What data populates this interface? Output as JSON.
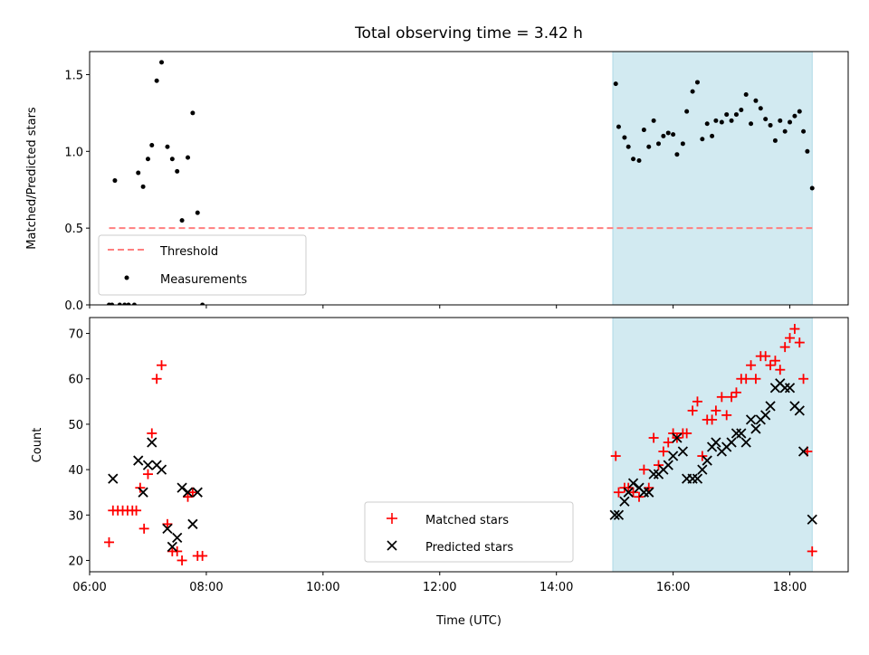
{
  "chart_data": [
    {
      "type": "scatter",
      "title": "Total observing time = 3.42 h",
      "xlabel": "",
      "ylabel": "Matched/Predicted stars",
      "xlim": [
        "06:00",
        "19:00"
      ],
      "ylim": [
        0,
        1.65
      ],
      "yticks": [
        0.0,
        0.5,
        1.0,
        1.5
      ],
      "ytick_labels": [
        "0.0",
        "0.5",
        "1.0",
        "1.5"
      ],
      "shaded_region": {
        "x_start": "14:58",
        "x_end": "18:23",
        "color": "#add8e6"
      },
      "threshold": {
        "name": "Threshold",
        "value": 0.5,
        "x_start": "06:20",
        "x_end": "18:23",
        "color": "#ff7f7f"
      },
      "legend": {
        "placement": "lower-left",
        "entries": [
          "Threshold",
          "Measurements"
        ]
      },
      "series": [
        {
          "name": "Measurements",
          "color": "#000000",
          "points": [
            [
              "06:20",
              0.0
            ],
            [
              "06:23",
              0.0
            ],
            [
              "06:26",
              0.81
            ],
            [
              "06:31",
              0.0
            ],
            [
              "06:36",
              0.0
            ],
            [
              "06:40",
              0.0
            ],
            [
              "06:46",
              0.0
            ],
            [
              "06:50",
              0.86
            ],
            [
              "06:55",
              0.77
            ],
            [
              "07:00",
              0.95
            ],
            [
              "07:04",
              1.04
            ],
            [
              "07:09",
              1.46
            ],
            [
              "07:14",
              1.58
            ],
            [
              "07:20",
              1.03
            ],
            [
              "07:25",
              0.95
            ],
            [
              "07:30",
              0.87
            ],
            [
              "07:35",
              0.55
            ],
            [
              "07:41",
              0.96
            ],
            [
              "07:46",
              1.25
            ],
            [
              "07:51",
              0.6
            ],
            [
              "07:56",
              0.0
            ],
            [
              "15:01",
              1.44
            ],
            [
              "15:04",
              1.16
            ],
            [
              "15:10",
              1.09
            ],
            [
              "15:14",
              1.03
            ],
            [
              "15:19",
              0.95
            ],
            [
              "15:25",
              0.94
            ],
            [
              "15:30",
              1.14
            ],
            [
              "15:35",
              1.03
            ],
            [
              "15:40",
              1.2
            ],
            [
              "15:45",
              1.05
            ],
            [
              "15:50",
              1.1
            ],
            [
              "15:55",
              1.12
            ],
            [
              "16:00",
              1.11
            ],
            [
              "16:04",
              0.98
            ],
            [
              "16:10",
              1.05
            ],
            [
              "16:14",
              1.26
            ],
            [
              "16:20",
              1.39
            ],
            [
              "16:25",
              1.45
            ],
            [
              "16:30",
              1.08
            ],
            [
              "16:35",
              1.18
            ],
            [
              "16:40",
              1.1
            ],
            [
              "16:44",
              1.2
            ],
            [
              "16:50",
              1.19
            ],
            [
              "16:55",
              1.24
            ],
            [
              "17:00",
              1.2
            ],
            [
              "17:05",
              1.24
            ],
            [
              "17:10",
              1.27
            ],
            [
              "17:15",
              1.37
            ],
            [
              "17:20",
              1.18
            ],
            [
              "17:25",
              1.33
            ],
            [
              "17:30",
              1.28
            ],
            [
              "17:35",
              1.21
            ],
            [
              "17:40",
              1.17
            ],
            [
              "17:45",
              1.07
            ],
            [
              "17:50",
              1.2
            ],
            [
              "17:55",
              1.13
            ],
            [
              "18:00",
              1.19
            ],
            [
              "18:05",
              1.23
            ],
            [
              "18:10",
              1.26
            ],
            [
              "18:14",
              1.13
            ],
            [
              "18:18",
              1.0
            ],
            [
              "18:23",
              0.76
            ]
          ]
        }
      ]
    },
    {
      "type": "scatter",
      "xlabel": "Time (UTC)",
      "ylabel": "Count",
      "xlim": [
        "06:00",
        "19:00"
      ],
      "ylim": [
        17.5,
        73.5
      ],
      "xticks": [
        "06:00",
        "08:00",
        "10:00",
        "12:00",
        "14:00",
        "16:00",
        "18:00"
      ],
      "yticks": [
        20,
        30,
        40,
        50,
        60,
        70
      ],
      "shaded_region": {
        "x_start": "14:58",
        "x_end": "18:23",
        "color": "#add8e6"
      },
      "legend": {
        "placement": "lower-center",
        "entries": [
          "Matched stars",
          "Predicted stars"
        ]
      },
      "series": [
        {
          "name": "Matched stars",
          "marker": "plus",
          "color": "#ff0000",
          "points": [
            [
              "06:20",
              24
            ],
            [
              "06:24",
              31
            ],
            [
              "06:29",
              31
            ],
            [
              "06:34",
              31
            ],
            [
              "06:39",
              31
            ],
            [
              "06:44",
              31
            ],
            [
              "06:48",
              31
            ],
            [
              "06:52",
              36
            ],
            [
              "06:56",
              27
            ],
            [
              "07:00",
              39
            ],
            [
              "07:04",
              48
            ],
            [
              "07:09",
              60
            ],
            [
              "07:14",
              63
            ],
            [
              "07:20",
              28
            ],
            [
              "07:25",
              22
            ],
            [
              "07:30",
              22
            ],
            [
              "07:35",
              20
            ],
            [
              "07:41",
              34
            ],
            [
              "07:46",
              35
            ],
            [
              "07:51",
              21
            ],
            [
              "07:56",
              21
            ],
            [
              "15:01",
              43
            ],
            [
              "15:04",
              35
            ],
            [
              "15:10",
              36
            ],
            [
              "15:14",
              36
            ],
            [
              "15:19",
              35
            ],
            [
              "15:25",
              34
            ],
            [
              "15:30",
              40
            ],
            [
              "15:35",
              36
            ],
            [
              "15:40",
              47
            ],
            [
              "15:45",
              41
            ],
            [
              "15:50",
              44
            ],
            [
              "15:55",
              46
            ],
            [
              "16:00",
              48
            ],
            [
              "16:04",
              47
            ],
            [
              "16:10",
              48
            ],
            [
              "16:14",
              48
            ],
            [
              "16:20",
              53
            ],
            [
              "16:25",
              55
            ],
            [
              "16:30",
              43
            ],
            [
              "16:35",
              51
            ],
            [
              "16:40",
              51
            ],
            [
              "16:44",
              53
            ],
            [
              "16:50",
              56
            ],
            [
              "16:55",
              52
            ],
            [
              "17:00",
              56
            ],
            [
              "17:05",
              57
            ],
            [
              "17:10",
              60
            ],
            [
              "17:15",
              60
            ],
            [
              "17:20",
              63
            ],
            [
              "17:25",
              60
            ],
            [
              "17:30",
              65
            ],
            [
              "17:35",
              65
            ],
            [
              "17:40",
              63
            ],
            [
              "17:45",
              64
            ],
            [
              "17:50",
              62
            ],
            [
              "17:55",
              67
            ],
            [
              "18:00",
              69
            ],
            [
              "18:05",
              71
            ],
            [
              "18:10",
              68
            ],
            [
              "18:14",
              60
            ],
            [
              "18:18",
              44
            ],
            [
              "18:23",
              22
            ]
          ]
        },
        {
          "name": "Predicted stars",
          "marker": "x",
          "color": "#000000",
          "points": [
            [
              "06:24",
              38
            ],
            [
              "06:50",
              42
            ],
            [
              "06:55",
              35
            ],
            [
              "07:00",
              41
            ],
            [
              "07:04",
              46
            ],
            [
              "07:09",
              41
            ],
            [
              "07:14",
              40
            ],
            [
              "07:20",
              27
            ],
            [
              "07:25",
              23
            ],
            [
              "07:30",
              25
            ],
            [
              "07:35",
              36
            ],
            [
              "07:41",
              35
            ],
            [
              "07:46",
              28
            ],
            [
              "07:51",
              35
            ],
            [
              "15:00",
              30
            ],
            [
              "15:04",
              30
            ],
            [
              "15:10",
              33
            ],
            [
              "15:14",
              35
            ],
            [
              "15:19",
              37
            ],
            [
              "15:25",
              36
            ],
            [
              "15:30",
              35
            ],
            [
              "15:35",
              35
            ],
            [
              "15:40",
              39
            ],
            [
              "15:45",
              39
            ],
            [
              "15:50",
              40
            ],
            [
              "15:55",
              41
            ],
            [
              "16:00",
              43
            ],
            [
              "16:04",
              47
            ],
            [
              "16:10",
              44
            ],
            [
              "16:14",
              38
            ],
            [
              "16:20",
              38
            ],
            [
              "16:25",
              38
            ],
            [
              "16:30",
              40
            ],
            [
              "16:35",
              42
            ],
            [
              "16:40",
              45
            ],
            [
              "16:44",
              46
            ],
            [
              "16:50",
              44
            ],
            [
              "16:55",
              45
            ],
            [
              "17:00",
              46
            ],
            [
              "17:05",
              48
            ],
            [
              "17:10",
              48
            ],
            [
              "17:15",
              46
            ],
            [
              "17:20",
              51
            ],
            [
              "17:25",
              49
            ],
            [
              "17:30",
              51
            ],
            [
              "17:35",
              52
            ],
            [
              "17:40",
              54
            ],
            [
              "17:45",
              58
            ],
            [
              "17:50",
              59
            ],
            [
              "17:55",
              58
            ],
            [
              "18:00",
              58
            ],
            [
              "18:05",
              54
            ],
            [
              "18:10",
              53
            ],
            [
              "18:14",
              44
            ],
            [
              "18:23",
              29
            ]
          ]
        }
      ]
    }
  ]
}
